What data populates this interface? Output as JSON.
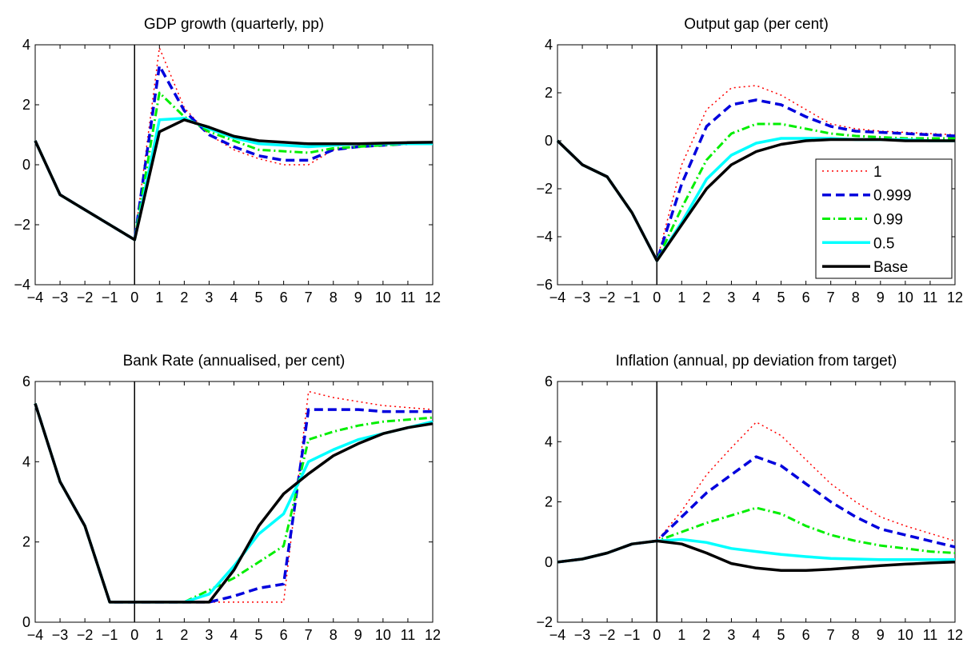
{
  "legend_placement": "inside-right",
  "chart_data": [
    {
      "type": "line",
      "title": "GDP growth (quarterly, pp)",
      "x": [
        -4,
        -3,
        -2,
        -1,
        0,
        1,
        2,
        3,
        4,
        5,
        6,
        7,
        8,
        9,
        10,
        11,
        12
      ],
      "xlim": [
        -4,
        12
      ],
      "ylim": [
        -4,
        4
      ],
      "xticks": [
        -4,
        -3,
        -2,
        -1,
        0,
        1,
        2,
        3,
        4,
        5,
        6,
        7,
        8,
        9,
        10,
        11,
        12
      ],
      "xtick_labels": [
        "−4",
        "−3",
        "−2",
        "−1",
        "0",
        "1",
        "2",
        "3",
        "4",
        "5",
        "6",
        "7",
        "8",
        "9",
        "10",
        "11",
        "12"
      ],
      "yticks": [
        -4,
        -2,
        0,
        2,
        4
      ],
      "ytick_labels": [
        "−4",
        "−2",
        "0",
        "2",
        "4"
      ],
      "vline": 0,
      "series": [
        {
          "name": "1",
          "values": [
            0.8,
            -1.0,
            -1.5,
            -2.0,
            -2.5,
            3.9,
            1.9,
            1.0,
            0.5,
            0.2,
            0.0,
            0.0,
            0.5,
            0.6,
            0.7,
            0.7,
            0.7
          ]
        },
        {
          "name": "0.999",
          "values": [
            0.8,
            -1.0,
            -1.5,
            -2.0,
            -2.5,
            3.3,
            1.8,
            1.0,
            0.6,
            0.3,
            0.15,
            0.15,
            0.5,
            0.6,
            0.65,
            0.7,
            0.7
          ]
        },
        {
          "name": "0.99",
          "values": [
            0.8,
            -1.0,
            -1.5,
            -2.0,
            -2.5,
            2.4,
            1.6,
            1.1,
            0.8,
            0.5,
            0.45,
            0.4,
            0.55,
            0.6,
            0.65,
            0.7,
            0.7
          ]
        },
        {
          "name": "0.5",
          "values": [
            0.8,
            -1.0,
            -1.5,
            -2.0,
            -2.5,
            1.5,
            1.55,
            1.2,
            0.9,
            0.7,
            0.65,
            0.6,
            0.65,
            0.7,
            0.7,
            0.7,
            0.7
          ]
        },
        {
          "name": "Base",
          "values": [
            0.8,
            -1.0,
            -1.5,
            -2.0,
            -2.5,
            1.1,
            1.5,
            1.25,
            0.95,
            0.8,
            0.75,
            0.7,
            0.7,
            0.7,
            0.72,
            0.74,
            0.75
          ]
        }
      ]
    },
    {
      "type": "line",
      "title": "Output gap (per cent)",
      "x": [
        -4,
        -3,
        -2,
        -1,
        0,
        1,
        2,
        3,
        4,
        5,
        6,
        7,
        8,
        9,
        10,
        11,
        12
      ],
      "xlim": [
        -4,
        12
      ],
      "ylim": [
        -6,
        4
      ],
      "xticks": [
        -4,
        -3,
        -2,
        -1,
        0,
        1,
        2,
        3,
        4,
        5,
        6,
        7,
        8,
        9,
        10,
        11,
        12
      ],
      "xtick_labels": [
        "−4",
        "−3",
        "−2",
        "−1",
        "0",
        "1",
        "2",
        "3",
        "4",
        "5",
        "6",
        "7",
        "8",
        "9",
        "10",
        "11",
        "12"
      ],
      "yticks": [
        -6,
        -4,
        -2,
        0,
        2,
        4
      ],
      "ytick_labels": [
        "−6",
        "−4",
        "−2",
        "0",
        "2",
        "4"
      ],
      "vline": 0,
      "series": [
        {
          "name": "1",
          "values": [
            0.0,
            -1.0,
            -1.5,
            -3.0,
            -5.0,
            -1.0,
            1.3,
            2.2,
            2.3,
            1.9,
            1.3,
            0.7,
            0.5,
            0.4,
            0.35,
            0.3,
            0.25
          ]
        },
        {
          "name": "0.999",
          "values": [
            0.0,
            -1.0,
            -1.5,
            -3.0,
            -5.0,
            -1.8,
            0.6,
            1.5,
            1.7,
            1.5,
            1.0,
            0.6,
            0.4,
            0.35,
            0.3,
            0.25,
            0.2
          ]
        },
        {
          "name": "0.99",
          "values": [
            0.0,
            -1.0,
            -1.5,
            -3.0,
            -5.0,
            -2.8,
            -0.8,
            0.3,
            0.7,
            0.7,
            0.5,
            0.3,
            0.2,
            0.15,
            0.1,
            0.1,
            0.1
          ]
        },
        {
          "name": "0.5",
          "values": [
            0.0,
            -1.0,
            -1.5,
            -3.0,
            -5.0,
            -3.4,
            -1.6,
            -0.6,
            -0.1,
            0.1,
            0.1,
            0.1,
            0.05,
            0.05,
            0.05,
            0.0,
            0.0
          ]
        },
        {
          "name": "Base",
          "values": [
            0.0,
            -1.0,
            -1.5,
            -3.0,
            -5.0,
            -3.5,
            -2.0,
            -1.0,
            -0.45,
            -0.15,
            0.0,
            0.05,
            0.05,
            0.05,
            0.0,
            0.0,
            0.0
          ]
        }
      ],
      "legend": {
        "entries": [
          "1",
          "0.999",
          "0.99",
          "0.5",
          "Base"
        ]
      }
    },
    {
      "type": "line",
      "title": "Bank Rate (annualised, per cent)",
      "x": [
        -4,
        -3,
        -2,
        -1,
        0,
        1,
        2,
        3,
        4,
        5,
        6,
        7,
        8,
        9,
        10,
        11,
        12
      ],
      "xlim": [
        -4,
        12
      ],
      "ylim": [
        0,
        6
      ],
      "xticks": [
        -4,
        -3,
        -2,
        -1,
        0,
        1,
        2,
        3,
        4,
        5,
        6,
        7,
        8,
        9,
        10,
        11,
        12
      ],
      "xtick_labels": [
        "−4",
        "−3",
        "−2",
        "−1",
        "0",
        "1",
        "2",
        "3",
        "4",
        "5",
        "6",
        "7",
        "8",
        "9",
        "10",
        "11",
        "12"
      ],
      "yticks": [
        0,
        2,
        4,
        6
      ],
      "ytick_labels": [
        "0",
        "2",
        "4",
        "6"
      ],
      "vline": 0,
      "series": [
        {
          "name": "1",
          "values": [
            5.45,
            3.5,
            2.4,
            0.5,
            0.5,
            0.5,
            0.5,
            0.5,
            0.5,
            0.5,
            0.5,
            5.75,
            5.6,
            5.5,
            5.4,
            5.35,
            5.3
          ]
        },
        {
          "name": "0.999",
          "values": [
            5.45,
            3.5,
            2.4,
            0.5,
            0.5,
            0.5,
            0.5,
            0.5,
            0.65,
            0.85,
            0.95,
            5.3,
            5.3,
            5.3,
            5.25,
            5.25,
            5.25
          ]
        },
        {
          "name": "0.99",
          "values": [
            5.45,
            3.5,
            2.4,
            0.5,
            0.5,
            0.5,
            0.5,
            0.8,
            1.1,
            1.5,
            1.9,
            4.55,
            4.75,
            4.9,
            5.0,
            5.05,
            5.1
          ]
        },
        {
          "name": "0.5",
          "values": [
            5.45,
            3.5,
            2.4,
            0.5,
            0.5,
            0.5,
            0.5,
            0.7,
            1.4,
            2.2,
            2.7,
            4.0,
            4.3,
            4.55,
            4.7,
            4.85,
            5.0
          ]
        },
        {
          "name": "Base",
          "values": [
            5.45,
            3.5,
            2.4,
            0.5,
            0.5,
            0.5,
            0.5,
            0.5,
            1.3,
            2.4,
            3.2,
            3.7,
            4.15,
            4.45,
            4.7,
            4.85,
            4.95
          ]
        }
      ]
    },
    {
      "type": "line",
      "title": "Inflation (annual, pp deviation from target)",
      "x": [
        -4,
        -3,
        -2,
        -1,
        0,
        1,
        2,
        3,
        4,
        5,
        6,
        7,
        8,
        9,
        10,
        11,
        12
      ],
      "xlim": [
        -4,
        12
      ],
      "ylim": [
        -2,
        6
      ],
      "xticks": [
        -4,
        -3,
        -2,
        -1,
        0,
        1,
        2,
        3,
        4,
        5,
        6,
        7,
        8,
        9,
        10,
        11,
        12
      ],
      "xtick_labels": [
        "−4",
        "−3",
        "−2",
        "−1",
        "0",
        "1",
        "2",
        "3",
        "4",
        "5",
        "6",
        "7",
        "8",
        "9",
        "10",
        "11",
        "12"
      ],
      "yticks": [
        -2,
        0,
        2,
        4,
        6
      ],
      "ytick_labels": [
        "−2",
        "0",
        "2",
        "4",
        "6"
      ],
      "vline": 0,
      "series": [
        {
          "name": "1",
          "values": [
            0.0,
            0.1,
            0.3,
            0.6,
            0.7,
            1.7,
            2.9,
            3.8,
            4.65,
            4.2,
            3.4,
            2.6,
            2.0,
            1.5,
            1.2,
            0.95,
            0.7
          ]
        },
        {
          "name": "0.999",
          "values": [
            0.0,
            0.1,
            0.3,
            0.6,
            0.7,
            1.5,
            2.3,
            2.9,
            3.5,
            3.2,
            2.6,
            2.0,
            1.5,
            1.1,
            0.9,
            0.7,
            0.5
          ]
        },
        {
          "name": "0.99",
          "values": [
            0.0,
            0.1,
            0.3,
            0.6,
            0.7,
            1.0,
            1.3,
            1.55,
            1.8,
            1.6,
            1.2,
            0.9,
            0.7,
            0.55,
            0.45,
            0.35,
            0.3
          ]
        },
        {
          "name": "0.5",
          "values": [
            0.0,
            0.1,
            0.3,
            0.6,
            0.7,
            0.75,
            0.65,
            0.45,
            0.35,
            0.25,
            0.18,
            0.12,
            0.1,
            0.08,
            0.08,
            0.08,
            0.08
          ]
        },
        {
          "name": "Base",
          "values": [
            0.0,
            0.1,
            0.3,
            0.6,
            0.7,
            0.6,
            0.3,
            -0.05,
            -0.2,
            -0.28,
            -0.28,
            -0.24,
            -0.18,
            -0.12,
            -0.07,
            -0.03,
            0.0
          ]
        }
      ]
    }
  ],
  "series_styles": [
    {
      "color": "#ff0000",
      "dash": "2,4",
      "width": 1.5
    },
    {
      "color": "#0000dd",
      "dash": "11,6",
      "width": 3.5
    },
    {
      "color": "#00ee00",
      "dash": "10,4,2,4",
      "width": 3
    },
    {
      "color": "#00ffff",
      "dash": "",
      "width": 3.5
    },
    {
      "color": "#000000",
      "dash": "",
      "width": 3.5
    }
  ]
}
